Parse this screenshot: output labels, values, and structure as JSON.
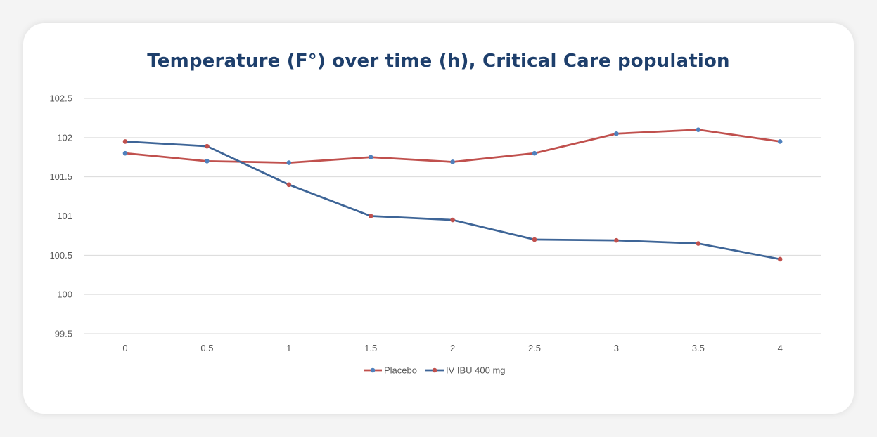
{
  "chart_data": {
    "type": "line",
    "title": "Temperature (F°) over time (h), Critical Care population",
    "xlabel": "",
    "ylabel": "",
    "x": [
      "0",
      "0.5",
      "1",
      "1.5",
      "2",
      "2.5",
      "3",
      "3.5",
      "4"
    ],
    "ylim": [
      99.5,
      102.5
    ],
    "yticks": [
      "99.5",
      "100",
      "100.5",
      "101",
      "101.5",
      "102",
      "102.5"
    ],
    "grid": true,
    "legend_position": "bottom",
    "series": [
      {
        "name": "Placebo",
        "line_color": "#c0504d",
        "marker_color": "#4f81bd",
        "values": [
          101.8,
          101.7,
          101.68,
          101.75,
          101.69,
          101.8,
          102.05,
          102.1,
          101.95
        ]
      },
      {
        "name": "IV IBU 400 mg",
        "line_color": "#3e6597",
        "marker_color": "#c0504d",
        "values": [
          101.95,
          101.89,
          101.4,
          101.0,
          100.95,
          100.7,
          100.69,
          100.65,
          100.45
        ]
      }
    ]
  }
}
